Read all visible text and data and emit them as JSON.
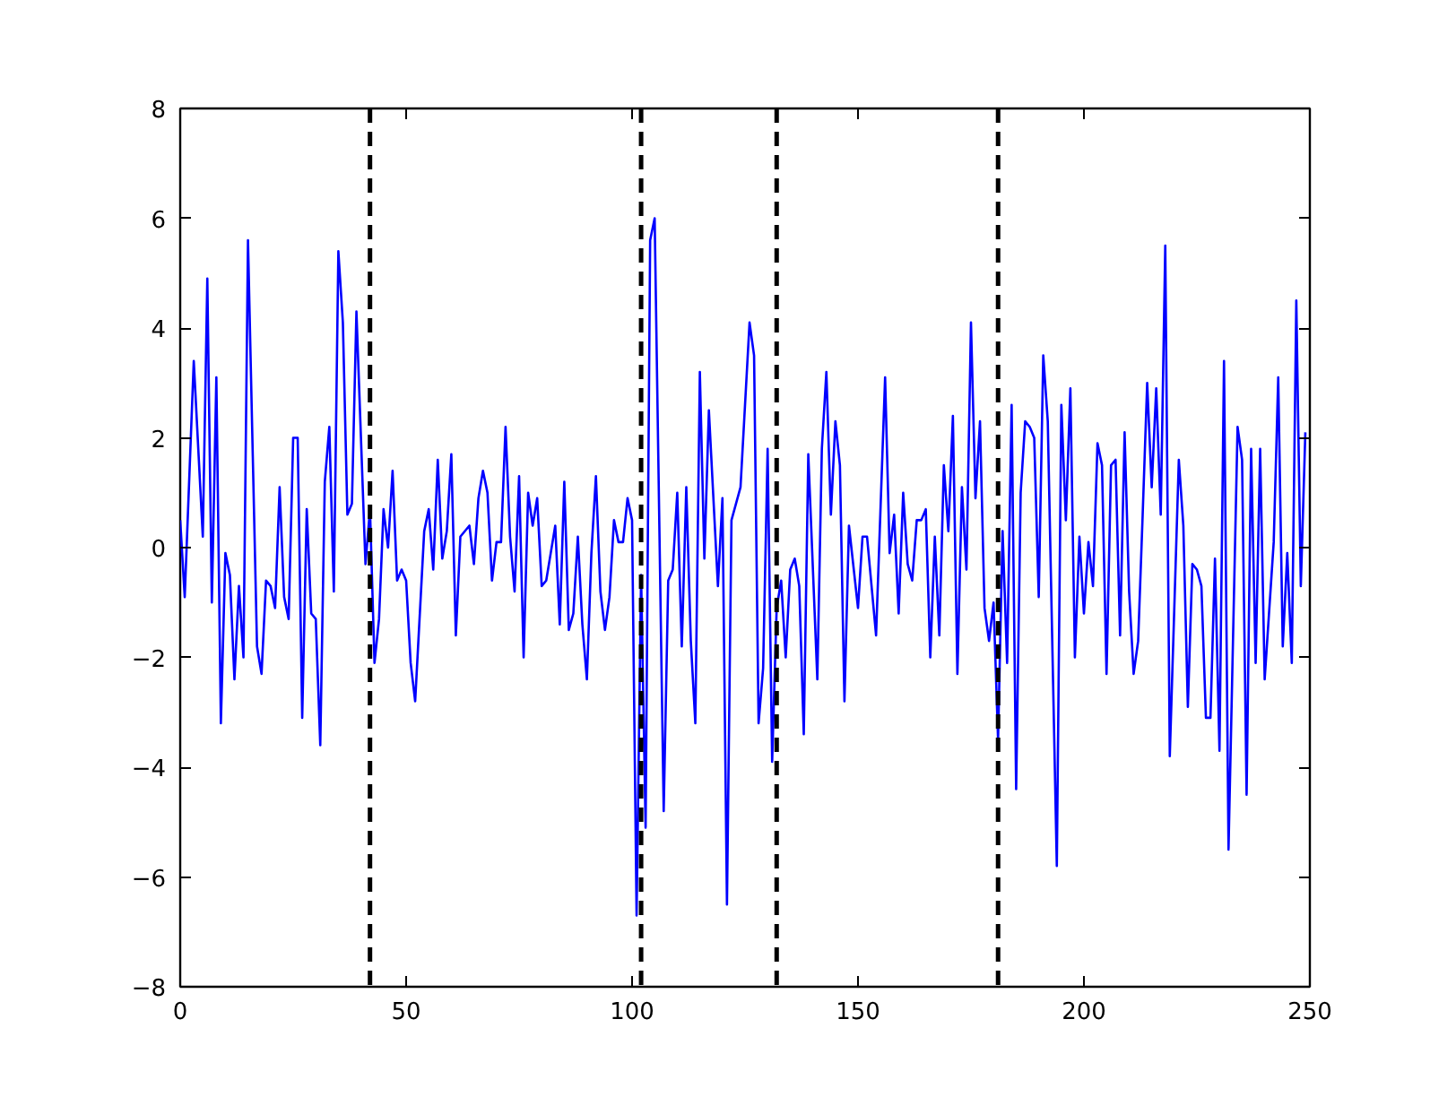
{
  "chart_data": {
    "type": "line",
    "xlim": [
      0,
      250
    ],
    "ylim": [
      -8,
      8
    ],
    "xticks": [
      0,
      50,
      100,
      150,
      200,
      250
    ],
    "yticks": [
      -8,
      -6,
      -4,
      -2,
      0,
      2,
      4,
      6,
      8
    ],
    "grid": false,
    "ref_lines": [
      {
        "axis": "x",
        "value": 42,
        "color": "#000000",
        "line_style": "dashed"
      },
      {
        "axis": "x",
        "value": 102,
        "color": "#000000",
        "line_style": "dashed"
      },
      {
        "axis": "x",
        "value": 132,
        "color": "#000000",
        "line_style": "dashed"
      },
      {
        "axis": "x",
        "value": 181,
        "color": "#000000",
        "line_style": "dashed"
      }
    ],
    "series": [
      {
        "color": "#0000ff",
        "x": [
          0,
          1,
          3,
          5,
          6,
          7,
          8,
          9,
          10,
          11,
          12,
          13,
          14,
          15,
          17,
          18,
          19,
          20,
          21,
          22,
          23,
          24,
          25,
          26,
          27,
          28,
          29,
          30,
          31,
          32,
          33,
          34,
          35,
          36,
          37,
          38,
          39,
          41,
          42,
          43,
          44,
          45,
          46,
          47,
          48,
          49,
          50,
          51,
          52,
          54,
          55,
          56,
          57,
          58,
          59,
          60,
          61,
          62,
          64,
          65,
          66,
          67,
          68,
          69,
          70,
          71,
          72,
          73,
          74,
          75,
          76,
          77,
          78,
          79,
          80,
          81,
          82,
          83,
          84,
          85,
          86,
          87,
          88,
          89,
          90,
          91,
          92,
          93,
          94,
          95,
          96,
          97,
          98,
          99,
          100,
          101,
          102,
          103,
          104,
          105,
          107,
          108,
          109,
          110,
          111,
          112,
          113,
          114,
          115,
          116,
          117,
          119,
          120,
          121,
          122,
          124,
          126,
          127,
          128,
          129,
          130,
          131,
          132,
          133,
          134,
          135,
          136,
          137,
          138,
          139,
          141,
          142,
          143,
          144,
          145,
          146,
          147,
          148,
          150,
          151,
          152,
          154,
          156,
          157,
          158,
          159,
          160,
          161,
          162,
          163,
          164,
          165,
          166,
          167,
          168,
          169,
          170,
          171,
          172,
          173,
          174,
          175,
          176,
          177,
          178,
          179,
          180,
          181,
          182,
          183,
          184,
          185,
          186,
          187,
          188,
          189,
          190,
          191,
          192,
          194,
          195,
          196,
          197,
          198,
          199,
          200,
          201,
          202,
          203,
          204,
          205,
          206,
          207,
          208,
          209,
          210,
          211,
          212,
          213,
          214,
          215,
          216,
          217,
          218,
          219,
          221,
          222,
          223,
          224,
          225,
          226,
          227,
          228,
          229,
          230,
          231,
          232,
          234,
          235,
          236,
          237,
          238,
          239,
          240,
          242,
          243,
          244,
          245,
          246,
          247,
          248,
          249
        ],
        "values": [
          0.5,
          -0.9,
          3.4,
          0.2,
          4.9,
          -1.0,
          3.1,
          -3.2,
          -0.1,
          -0.5,
          -2.4,
          -0.7,
          -2.0,
          5.6,
          -1.8,
          -2.3,
          -0.6,
          -0.7,
          -1.1,
          1.1,
          -0.9,
          -1.3,
          2.0,
          2.0,
          -3.1,
          0.7,
          -1.2,
          -1.3,
          -3.6,
          1.2,
          2.2,
          -0.8,
          5.4,
          4.1,
          0.6,
          0.8,
          4.3,
          -0.3,
          0.7,
          -2.1,
          -1.3,
          0.7,
          0.0,
          1.4,
          -0.6,
          -0.4,
          -0.6,
          -2.1,
          -2.8,
          0.3,
          0.7,
          -0.4,
          1.6,
          -0.2,
          0.3,
          1.7,
          -1.6,
          0.2,
          0.4,
          -0.3,
          0.9,
          1.4,
          1.0,
          -0.6,
          0.1,
          0.1,
          2.2,
          0.2,
          -0.8,
          1.3,
          -2.0,
          1.0,
          0.4,
          0.9,
          -0.7,
          -0.6,
          -0.1,
          0.4,
          -1.4,
          1.2,
          -1.5,
          -1.2,
          0.2,
          -1.4,
          -2.4,
          -0.1,
          1.3,
          -0.8,
          -1.5,
          -0.9,
          0.5,
          0.1,
          0.1,
          0.9,
          0.5,
          -6.7,
          -0.5,
          -5.1,
          5.6,
          6.0,
          -4.8,
          -0.6,
          -0.4,
          1.0,
          -1.8,
          1.1,
          -1.7,
          -3.2,
          3.2,
          -0.2,
          2.5,
          -0.7,
          0.9,
          -6.5,
          0.5,
          1.1,
          4.1,
          3.5,
          -3.2,
          -2.2,
          1.8,
          -3.9,
          -1.1,
          -0.6,
          -2.0,
          -0.4,
          -0.2,
          -0.7,
          -3.4,
          1.7,
          -2.4,
          1.8,
          3.2,
          0.6,
          2.3,
          1.5,
          -2.8,
          0.4,
          -1.1,
          0.2,
          0.2,
          -1.6,
          3.1,
          -0.1,
          0.6,
          -1.2,
          1.0,
          -0.3,
          -0.6,
          0.5,
          0.5,
          0.7,
          -2.0,
          0.2,
          -1.6,
          1.5,
          0.3,
          2.4,
          -2.3,
          1.1,
          -0.4,
          4.1,
          0.9,
          2.3,
          -1.1,
          -1.7,
          -1.0,
          -3.5,
          0.3,
          -2.1,
          2.6,
          -4.4,
          1.0,
          2.3,
          2.2,
          2.0,
          -0.9,
          3.5,
          2.3,
          -5.8,
          2.6,
          0.5,
          2.9,
          -2.0,
          0.2,
          -1.2,
          0.1,
          -0.7,
          1.9,
          1.5,
          -2.3,
          1.5,
          1.6,
          -1.6,
          2.1,
          -0.8,
          -2.3,
          -1.7,
          0.6,
          3.0,
          1.1,
          2.9,
          0.6,
          5.5,
          -3.8,
          1.6,
          0.4,
          -2.9,
          -0.3,
          -0.4,
          -0.7,
          -3.1,
          -3.1,
          -0.2,
          -3.7,
          3.4,
          -5.5,
          2.2,
          1.6,
          -4.5,
          1.8,
          -2.1,
          1.8,
          -2.4,
          0.1,
          3.1,
          -1.8,
          -0.1,
          -2.1,
          4.5,
          -0.7,
          2.1
        ]
      }
    ]
  }
}
